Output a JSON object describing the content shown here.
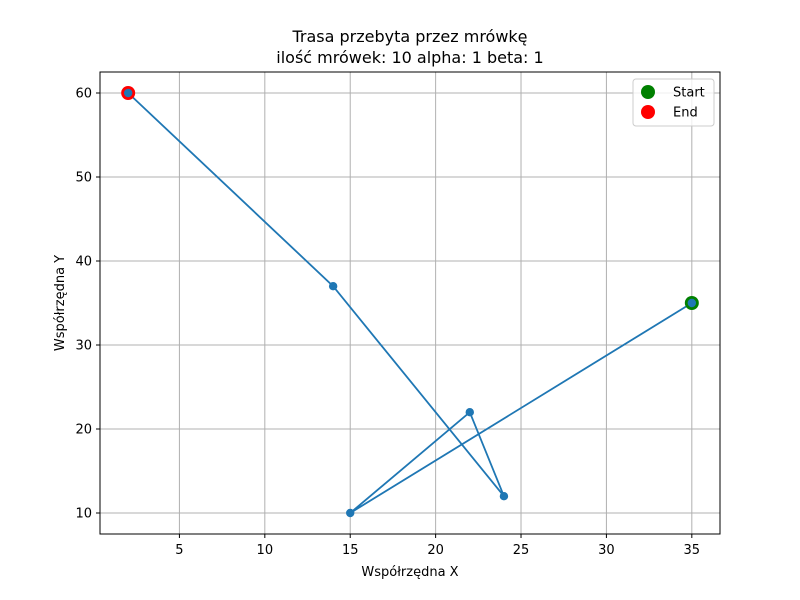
{
  "chart_data": {
    "type": "line",
    "title": "Trasa przebyta przez mrówkę",
    "subtitle": "ilość mrówek: 10 alpha: 1 beta: 1",
    "xlabel": "Współrzędna X",
    "ylabel": "Współrzędna Y",
    "xlim": [
      0.35,
      36.65
    ],
    "ylim": [
      7.5,
      62.5
    ],
    "xticks": [
      5,
      10,
      15,
      20,
      25,
      30,
      35
    ],
    "yticks": [
      10,
      20,
      30,
      40,
      50,
      60
    ],
    "grid": true,
    "legend_position": "top-right",
    "series": [
      {
        "points": [
          [
            35,
            35
          ],
          [
            15,
            10
          ],
          [
            22,
            22
          ],
          [
            24,
            12
          ],
          [
            14,
            37
          ],
          [
            2,
            60
          ]
        ],
        "color": "#1f77b4"
      }
    ],
    "markers": [
      {
        "name": "Start",
        "x": 35,
        "y": 35,
        "color": "#008000"
      },
      {
        "name": "End",
        "x": 2,
        "y": 60,
        "color": "#ff0000"
      }
    ]
  }
}
